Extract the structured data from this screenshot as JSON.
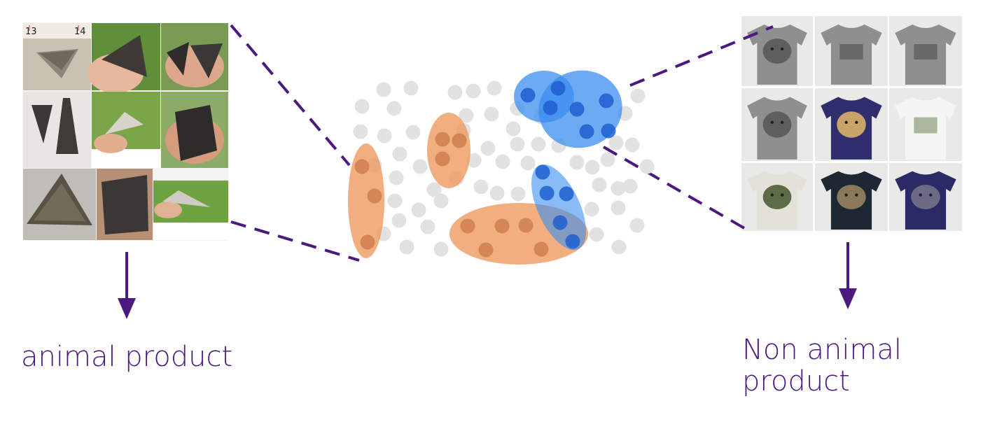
{
  "labels": {
    "left": "animal product",
    "right": "Non animal product"
  },
  "colors": {
    "accent": "#4b1a80",
    "cluster_orange": "#ee9a5e",
    "cluster_blue": "#3b8ef0",
    "dot_gray": "#e2e2e2",
    "dot_orange": "#c9784a",
    "dot_blue": "#1f5fcf"
  },
  "panels": {
    "left_subject": "shark-teeth",
    "right_subject": "wolf-t-shirts"
  }
}
